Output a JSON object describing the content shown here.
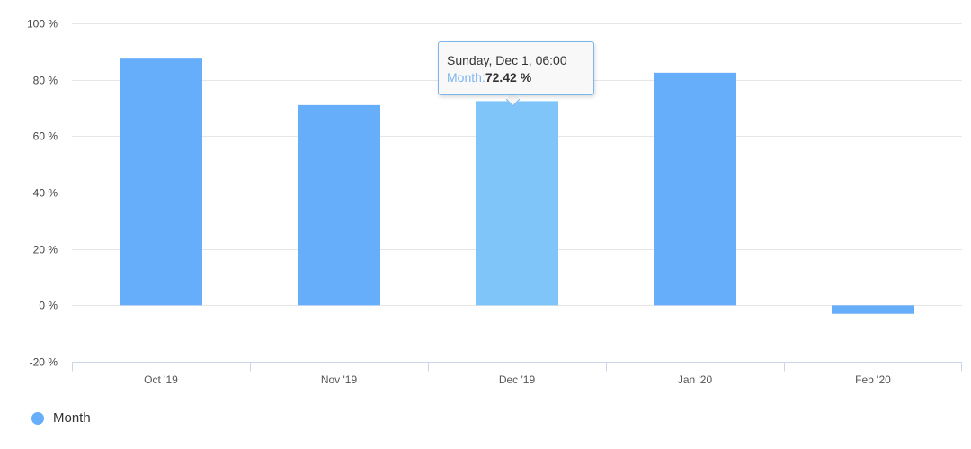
{
  "chart_data": {
    "type": "bar",
    "categories": [
      "Oct '19",
      "Nov '19",
      "Dec '19",
      "Jan '20",
      "Feb '20"
    ],
    "series": [
      {
        "name": "Month",
        "values": [
          87.5,
          71.0,
          72.42,
          82.5,
          -3.0
        ]
      }
    ],
    "ylim": [
      -20,
      100
    ],
    "yticks": [
      -20,
      0,
      20,
      40,
      60,
      80,
      100
    ],
    "ytick_labels": [
      "-20 %",
      "0 %",
      "20 %",
      "40 %",
      "60 %",
      "80 %",
      "100 %"
    ],
    "grid": true,
    "legend": "bottom-left",
    "highlighted_index": 2,
    "colors": {
      "bar": "#66aef9",
      "bar_hover": "#80c5fa",
      "grid": "#e6e6e6",
      "axis": "#ccd6eb"
    }
  },
  "tooltip": {
    "date": "Sunday, Dec 1, 06:00",
    "series_name": "Month:",
    "value": "72.42 %"
  },
  "legend": {
    "label": "Month",
    "color": "#66aef9"
  }
}
